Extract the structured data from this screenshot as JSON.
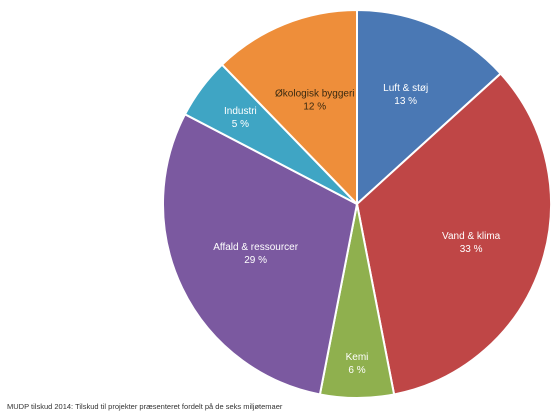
{
  "chart_data": {
    "type": "pie",
    "caption": "MUDP tilskud 2014: Tilskud til projekter præsenteret fordelt på de seks miljøtemaer",
    "slices": [
      {
        "name": "Luft & støj",
        "value": 13,
        "label": "13 %",
        "color": "#4a78b4"
      },
      {
        "name": "Vand & klima",
        "value": 33,
        "label": "33 %",
        "color": "#bf4646"
      },
      {
        "name": "Kemi",
        "value": 6,
        "label": "6 %",
        "color": "#8fb04e"
      },
      {
        "name": "Affald & ressourcer",
        "value": 29,
        "label": "29 %",
        "color": "#7b59a0"
      },
      {
        "name": "Industri",
        "value": 5,
        "label": "5 %",
        "color": "#3fa5c4"
      },
      {
        "name": "Økologisk byggeri",
        "value": 12,
        "label": "12 %",
        "color": "#ee8e3a"
      }
    ]
  }
}
